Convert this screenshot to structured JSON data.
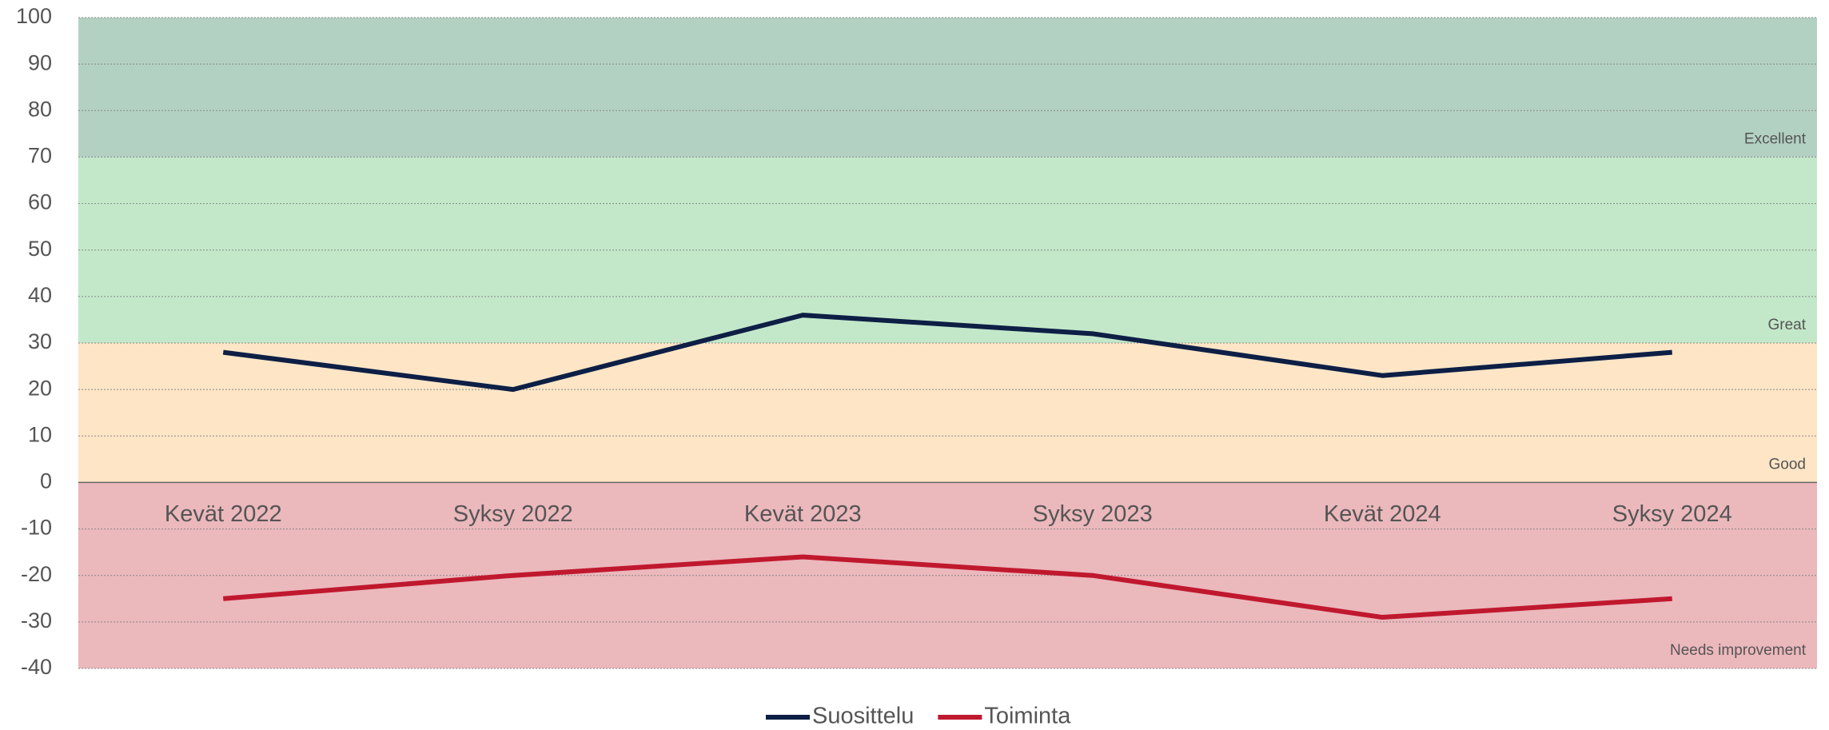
{
  "chart_data": {
    "type": "line",
    "categories": [
      "Kevät 2022",
      "Syksy 2022",
      "Kevät 2023",
      "Syksy 2023",
      "Kevät 2024",
      "Syksy 2024"
    ],
    "series": [
      {
        "name": "Suosittelu",
        "color": "#0d1f45",
        "values": [
          28,
          20,
          36,
          32,
          23,
          28
        ]
      },
      {
        "name": "Toiminta",
        "color": "#c0182e",
        "values": [
          -25,
          -20,
          -16,
          -20,
          -29,
          -25
        ]
      }
    ],
    "bands": [
      {
        "name": "Excellent",
        "from": 70,
        "to": 100,
        "color": "#b3d1c3"
      },
      {
        "name": "Great",
        "from": 30,
        "to": 70,
        "color": "#c3e8c9"
      },
      {
        "name": "Good",
        "from": 0,
        "to": 30,
        "color": "#fde5c6"
      },
      {
        "name": "Needs improvement",
        "from": -40,
        "to": 0,
        "color": "#ebb8bc"
      }
    ],
    "ylim": [
      -40,
      100
    ],
    "yticks": [
      -40,
      -30,
      -20,
      -10,
      0,
      10,
      20,
      30,
      40,
      50,
      60,
      70,
      80,
      90,
      100
    ],
    "grid": true,
    "legend": "bottom"
  }
}
